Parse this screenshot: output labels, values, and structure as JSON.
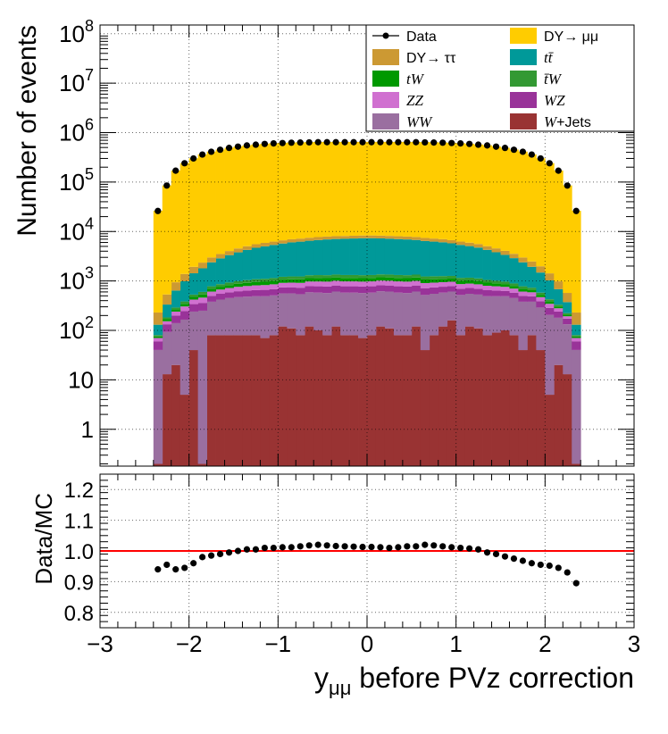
{
  "chart_data": [
    {
      "type": "histogram-stacked",
      "ylabel": "Number of events",
      "log_y": true,
      "ylim": [
        0.18,
        150000000
      ],
      "xlim": [
        -3,
        3
      ],
      "grid": true,
      "legend_position": "top-right",
      "y_tick_labels": [
        "1",
        "10",
        "10^2",
        "10^3",
        "10^4",
        "10^5",
        "10^6",
        "10^7",
        "10^8"
      ],
      "bin_edges_range": [
        -2.4,
        2.4
      ],
      "n_bins": 48,
      "series": [
        {
          "name": "W+Jets",
          "color": "#993333",
          "values": [
            0.2,
            13,
            20,
            5,
            40,
            0.2,
            80,
            80,
            80,
            80,
            80,
            80,
            70,
            80,
            120,
            110,
            80,
            120,
            100,
            80,
            120,
            80,
            80,
            70,
            80,
            120,
            110,
            80,
            80,
            120,
            40,
            80,
            120,
            160,
            80,
            120,
            110,
            80,
            90,
            100,
            80,
            40,
            80,
            40,
            5,
            20,
            13,
            0.2
          ]
        },
        {
          "name": "WW",
          "color": "#9a6fa0",
          "values": [
            40,
            80,
            120,
            160,
            200,
            250,
            300,
            340,
            370,
            390,
            400,
            410,
            420,
            430,
            440,
            450,
            460,
            470,
            480,
            490,
            490,
            500,
            500,
            500,
            500,
            500,
            500,
            500,
            490,
            490,
            480,
            470,
            460,
            450,
            440,
            430,
            420,
            410,
            400,
            390,
            370,
            340,
            300,
            250,
            200,
            160,
            120,
            40
          ]
        },
        {
          "name": "WZ",
          "color": "#993399",
          "values": [
            20,
            40,
            60,
            80,
            100,
            110,
            120,
            130,
            140,
            150,
            160,
            165,
            170,
            175,
            180,
            185,
            190,
            195,
            200,
            200,
            200,
            200,
            200,
            200,
            200,
            200,
            200,
            200,
            200,
            200,
            195,
            190,
            185,
            180,
            175,
            170,
            165,
            160,
            150,
            140,
            130,
            120,
            110,
            100,
            80,
            60,
            40,
            20
          ]
        },
        {
          "name": "ZZ",
          "color": "#d070d0",
          "values": [
            10,
            20,
            40,
            60,
            80,
            100,
            110,
            120,
            130,
            140,
            150,
            160,
            165,
            170,
            175,
            180,
            185,
            190,
            195,
            200,
            200,
            200,
            200,
            200,
            200,
            200,
            200,
            200,
            200,
            195,
            190,
            185,
            180,
            175,
            170,
            165,
            160,
            150,
            140,
            130,
            120,
            110,
            100,
            80,
            60,
            40,
            20,
            10
          ]
        },
        {
          "name": "tW",
          "color": "#009900",
          "values": [
            5,
            15,
            25,
            40,
            55,
            70,
            85,
            95,
            105,
            115,
            125,
            135,
            140,
            145,
            150,
            155,
            160,
            165,
            170,
            170,
            170,
            170,
            170,
            170,
            170,
            170,
            170,
            170,
            170,
            170,
            165,
            160,
            155,
            150,
            145,
            140,
            135,
            125,
            115,
            105,
            95,
            85,
            70,
            55,
            40,
            25,
            15,
            5
          ]
        },
        {
          "name": "t̄W",
          "color": "#339933",
          "values": [
            5,
            15,
            25,
            40,
            55,
            70,
            85,
            95,
            105,
            115,
            125,
            135,
            140,
            145,
            150,
            155,
            160,
            165,
            170,
            170,
            170,
            170,
            170,
            170,
            170,
            170,
            170,
            170,
            170,
            170,
            165,
            160,
            155,
            150,
            145,
            140,
            135,
            125,
            115,
            105,
            95,
            85,
            70,
            55,
            40,
            25,
            15,
            5
          ]
        },
        {
          "name": "tt̄",
          "color": "#009999",
          "values": [
            50,
            150,
            350,
            600,
            900,
            1200,
            1600,
            2000,
            2400,
            2800,
            3200,
            3600,
            3900,
            4200,
            4500,
            4800,
            5000,
            5200,
            5400,
            5600,
            5700,
            5800,
            5900,
            6000,
            6000,
            5900,
            5800,
            5700,
            5600,
            5400,
            5200,
            5000,
            4800,
            4500,
            4200,
            3900,
            3600,
            3200,
            2800,
            2400,
            2000,
            1600,
            1200,
            900,
            600,
            350,
            150,
            50
          ]
        },
        {
          "name": "DY→ ττ",
          "color": "#cc9933",
          "values": [
            100,
            200,
            300,
            400,
            500,
            550,
            600,
            650,
            700,
            750,
            800,
            850,
            880,
            900,
            920,
            940,
            960,
            980,
            1000,
            1000,
            1000,
            1000,
            1000,
            1000,
            1000,
            1000,
            1000,
            1000,
            1000,
            1000,
            980,
            960,
            940,
            920,
            900,
            880,
            850,
            800,
            750,
            700,
            650,
            600,
            550,
            500,
            400,
            300,
            200,
            100
          ]
        },
        {
          "name": "DY→ μμ",
          "color": "#ffcc00",
          "values": [
            26000,
            85000,
            170000,
            240000,
            300000,
            360000,
            410000,
            450000,
            490000,
            520000,
            550000,
            570000,
            590000,
            605000,
            615000,
            625000,
            630000,
            635000,
            640000,
            640000,
            640000,
            640000,
            640000,
            640000,
            640000,
            640000,
            640000,
            640000,
            640000,
            640000,
            635000,
            630000,
            625000,
            615000,
            605000,
            590000,
            570000,
            550000,
            520000,
            490000,
            450000,
            410000,
            360000,
            300000,
            240000,
            170000,
            85000,
            26000
          ]
        }
      ],
      "data_points": {
        "name": "Data",
        "x": [
          -2.35,
          -2.25,
          -2.15,
          -2.05,
          -1.95,
          -1.85,
          -1.75,
          -1.65,
          -1.55,
          -1.45,
          -1.35,
          -1.25,
          -1.15,
          -1.05,
          -0.95,
          -0.85,
          -0.75,
          -0.65,
          -0.55,
          -0.45,
          -0.35,
          -0.25,
          -0.15,
          -0.05,
          0.05,
          0.15,
          0.25,
          0.35,
          0.45,
          0.55,
          0.65,
          0.75,
          0.85,
          0.95,
          1.05,
          1.15,
          1.25,
          1.35,
          1.45,
          1.55,
          1.65,
          1.75,
          1.85,
          1.95,
          2.05,
          2.15,
          2.25,
          2.35
        ],
        "y": [
          26000,
          85000,
          170000,
          240000,
          300000,
          360000,
          410000,
          450000,
          490000,
          520000,
          550000,
          570000,
          590000,
          605000,
          615000,
          625000,
          630000,
          635000,
          640000,
          640000,
          640000,
          640000,
          640000,
          640000,
          640000,
          640000,
          640000,
          640000,
          640000,
          640000,
          635000,
          630000,
          625000,
          615000,
          605000,
          590000,
          570000,
          550000,
          520000,
          490000,
          450000,
          410000,
          360000,
          300000,
          240000,
          170000,
          85000,
          26000
        ]
      },
      "legend": [
        "Data",
        "DY→ μμ",
        "DY→ ττ",
        "tt̄",
        "tW",
        "t̄W",
        "ZZ",
        "WZ",
        "WW",
        "W+Jets"
      ]
    },
    {
      "type": "scatter",
      "ylabel": "Data/MC",
      "xlabel_main": "y",
      "xlabel_sub": "μμ",
      "xlabel_rest": " before PVz correction",
      "xlim": [
        -3,
        3
      ],
      "ylim": [
        0.75,
        1.25
      ],
      "y_ticks": [
        "0.8",
        "0.9",
        "1.0",
        "1.1",
        "1.2"
      ],
      "x_ticks": [
        "−3",
        "−2",
        "−1",
        "0",
        "1",
        "2",
        "3"
      ],
      "reference_line": {
        "y": 1.0,
        "color": "#ff0000"
      },
      "grid": true,
      "x": [
        -2.35,
        -2.25,
        -2.15,
        -2.05,
        -1.95,
        -1.85,
        -1.75,
        -1.65,
        -1.55,
        -1.45,
        -1.35,
        -1.25,
        -1.15,
        -1.05,
        -0.95,
        -0.85,
        -0.75,
        -0.65,
        -0.55,
        -0.45,
        -0.35,
        -0.25,
        -0.15,
        -0.05,
        0.05,
        0.15,
        0.25,
        0.35,
        0.45,
        0.55,
        0.65,
        0.75,
        0.85,
        0.95,
        1.05,
        1.15,
        1.25,
        1.35,
        1.45,
        1.55,
        1.65,
        1.75,
        1.85,
        1.95,
        2.05,
        2.15,
        2.25,
        2.35
      ],
      "y": [
        0.94,
        0.955,
        0.94,
        0.945,
        0.96,
        0.98,
        0.985,
        0.99,
        0.995,
        1.0,
        1.005,
        1.005,
        1.01,
        1.01,
        1.012,
        1.012,
        1.015,
        1.018,
        1.02,
        1.018,
        1.016,
        1.015,
        1.014,
        1.013,
        1.013,
        1.012,
        1.01,
        1.012,
        1.015,
        1.015,
        1.02,
        1.018,
        1.015,
        1.012,
        1.01,
        1.008,
        1.005,
        0.995,
        0.99,
        0.982,
        0.975,
        0.968,
        0.96,
        0.955,
        0.952,
        0.945,
        0.93,
        0.895
      ]
    }
  ]
}
